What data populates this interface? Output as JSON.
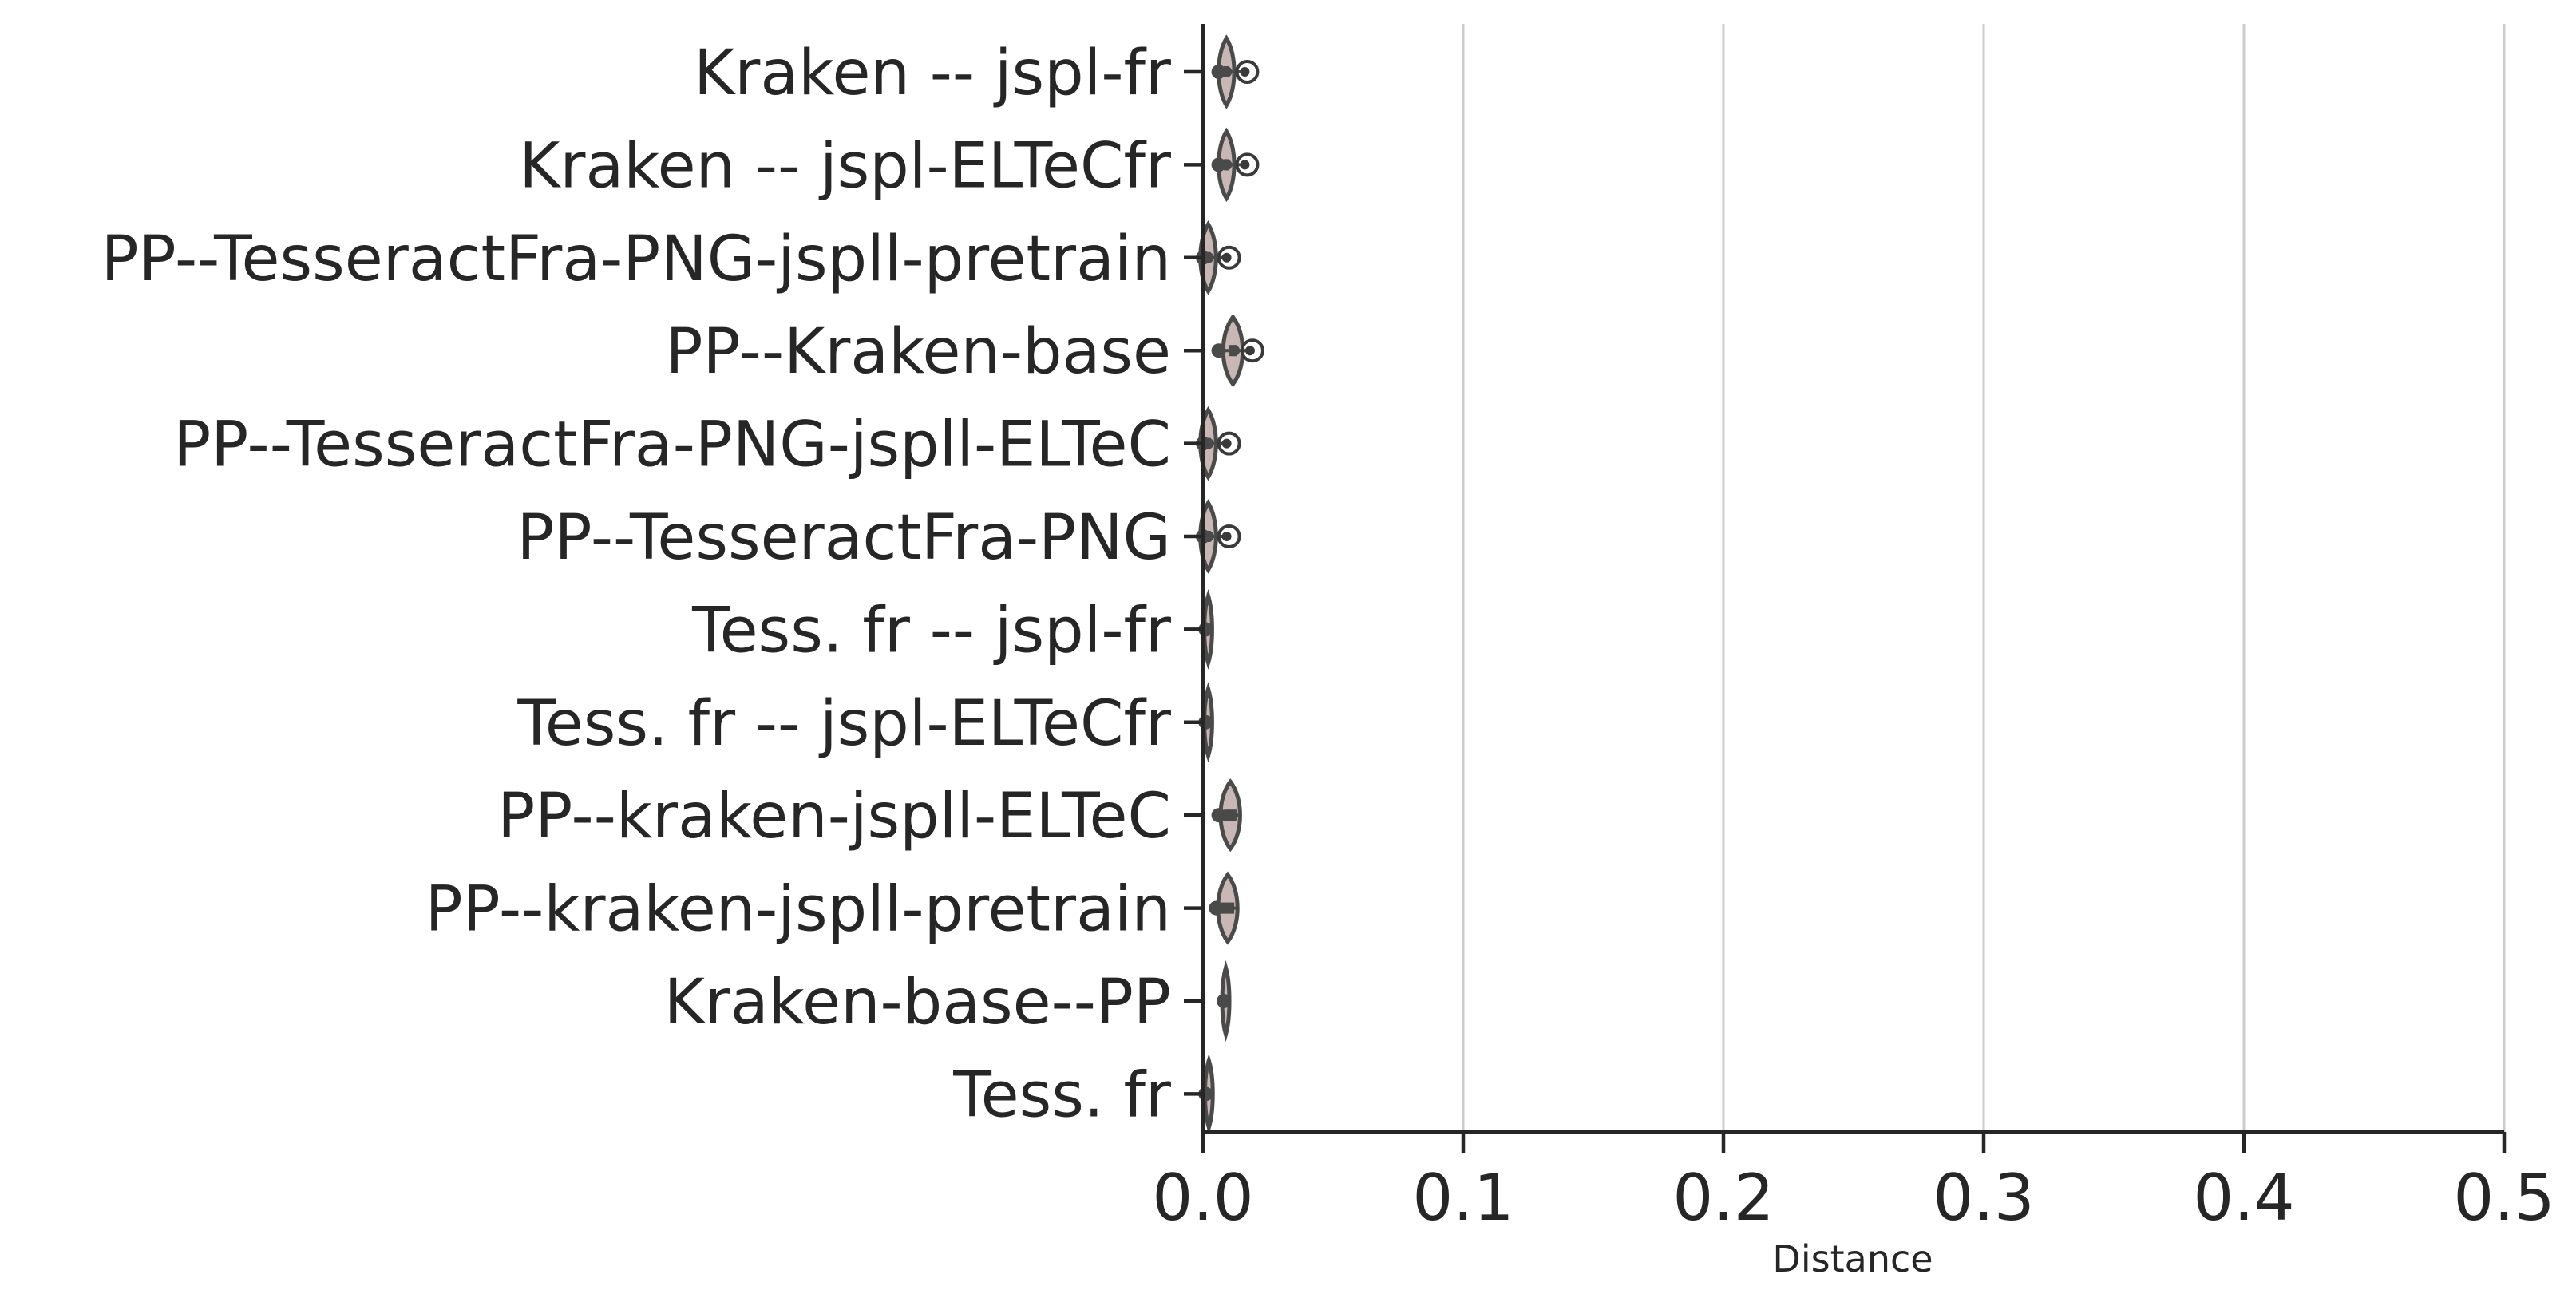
{
  "chart_data": {
    "type": "violin",
    "orientation": "horizontal",
    "xlabel": "Distance",
    "xlim": [
      0.0,
      0.5
    ],
    "xticks": [
      "0.0",
      "0.1",
      "0.2",
      "0.3",
      "0.4",
      "0.5"
    ],
    "grid": "vertical",
    "categories": [
      "Kraken -- jspl-fr",
      "Kraken -- jspl-ELTeCfr",
      "PP--TesseractFra-PNG-jspll-pretrain",
      "PP--Kraken-base",
      "PP--TesseractFra-PNG-jspll-ELTeC",
      "PP--TesseractFra-PNG",
      "Tess. fr -- jspl-fr",
      "Tess. fr -- jspl-ELTeCfr",
      "PP--kraken-jspll-ELTeC",
      "PP--kraken-jspll-pretrain",
      "Kraken-base--PP",
      "Tess. fr"
    ],
    "series": [
      {
        "min": 0.006,
        "q1": 0.008,
        "median": 0.009,
        "q3": 0.01,
        "max": 0.017,
        "width": 0.004,
        "outliers": [
          0.017
        ]
      },
      {
        "min": 0.006,
        "q1": 0.008,
        "median": 0.009,
        "q3": 0.01,
        "max": 0.017,
        "width": 0.004,
        "outliers": [
          0.017
        ]
      },
      {
        "min": 0.0,
        "q1": 0.001,
        "median": 0.002,
        "q3": 0.003,
        "max": 0.01,
        "width": 0.004,
        "outliers": [
          0.01
        ]
      },
      {
        "min": 0.006,
        "q1": 0.01,
        "median": 0.012,
        "q3": 0.013,
        "max": 0.019,
        "width": 0.005,
        "outliers": [
          0.019
        ]
      },
      {
        "min": 0.0,
        "q1": 0.001,
        "median": 0.002,
        "q3": 0.003,
        "max": 0.01,
        "width": 0.004,
        "outliers": [
          0.01
        ]
      },
      {
        "min": 0.0,
        "q1": 0.001,
        "median": 0.002,
        "q3": 0.003,
        "max": 0.01,
        "width": 0.004,
        "outliers": [
          0.01
        ]
      },
      {
        "min": 0.001,
        "q1": 0.0015,
        "median": 0.002,
        "q3": 0.0025,
        "max": 0.003,
        "width": 0.002,
        "outliers": []
      },
      {
        "min": 0.001,
        "q1": 0.0015,
        "median": 0.002,
        "q3": 0.0025,
        "max": 0.003,
        "width": 0.002,
        "outliers": []
      },
      {
        "min": 0.006,
        "q1": 0.008,
        "median": 0.01,
        "q3": 0.013,
        "max": 0.014,
        "width": 0.005,
        "outliers": []
      },
      {
        "min": 0.005,
        "q1": 0.007,
        "median": 0.01,
        "q3": 0.012,
        "max": 0.013,
        "width": 0.005,
        "outliers": []
      },
      {
        "min": 0.008,
        "q1": 0.0085,
        "median": 0.0085,
        "q3": 0.009,
        "max": 0.009,
        "width": 0.001,
        "outliers": []
      },
      {
        "min": 0.001,
        "q1": 0.0015,
        "median": 0.002,
        "q3": 0.003,
        "max": 0.003,
        "width": 0.002,
        "outliers": []
      }
    ],
    "colors": {
      "violin_fill": "#c9b7b5",
      "violin_edge": "#4a4a4a",
      "outlier_edge": "#3a3a3a",
      "grid": "#cccccc",
      "axis": "#262626",
      "text": "#262626"
    }
  }
}
